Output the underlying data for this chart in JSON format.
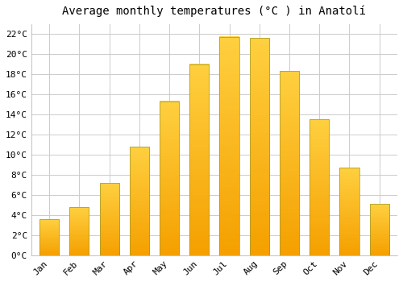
{
  "title": "Average monthly temperatures (°C ) in Anatolí",
  "months": [
    "Jan",
    "Feb",
    "Mar",
    "Apr",
    "May",
    "Jun",
    "Jul",
    "Aug",
    "Sep",
    "Oct",
    "Nov",
    "Dec"
  ],
  "values": [
    3.6,
    4.8,
    7.2,
    10.8,
    15.3,
    19.0,
    21.7,
    21.6,
    18.3,
    13.5,
    8.7,
    5.1
  ],
  "bar_color": "#FFA500",
  "bar_highlight": "#FFD700",
  "bar_edge_color": "#888800",
  "background_color": "#FFFFFF",
  "grid_color": "#CCCCCC",
  "ylim": [
    0,
    23
  ],
  "yticks": [
    0,
    2,
    4,
    6,
    8,
    10,
    12,
    14,
    16,
    18,
    20,
    22
  ],
  "title_fontsize": 10,
  "tick_fontsize": 8,
  "font_family": "monospace"
}
